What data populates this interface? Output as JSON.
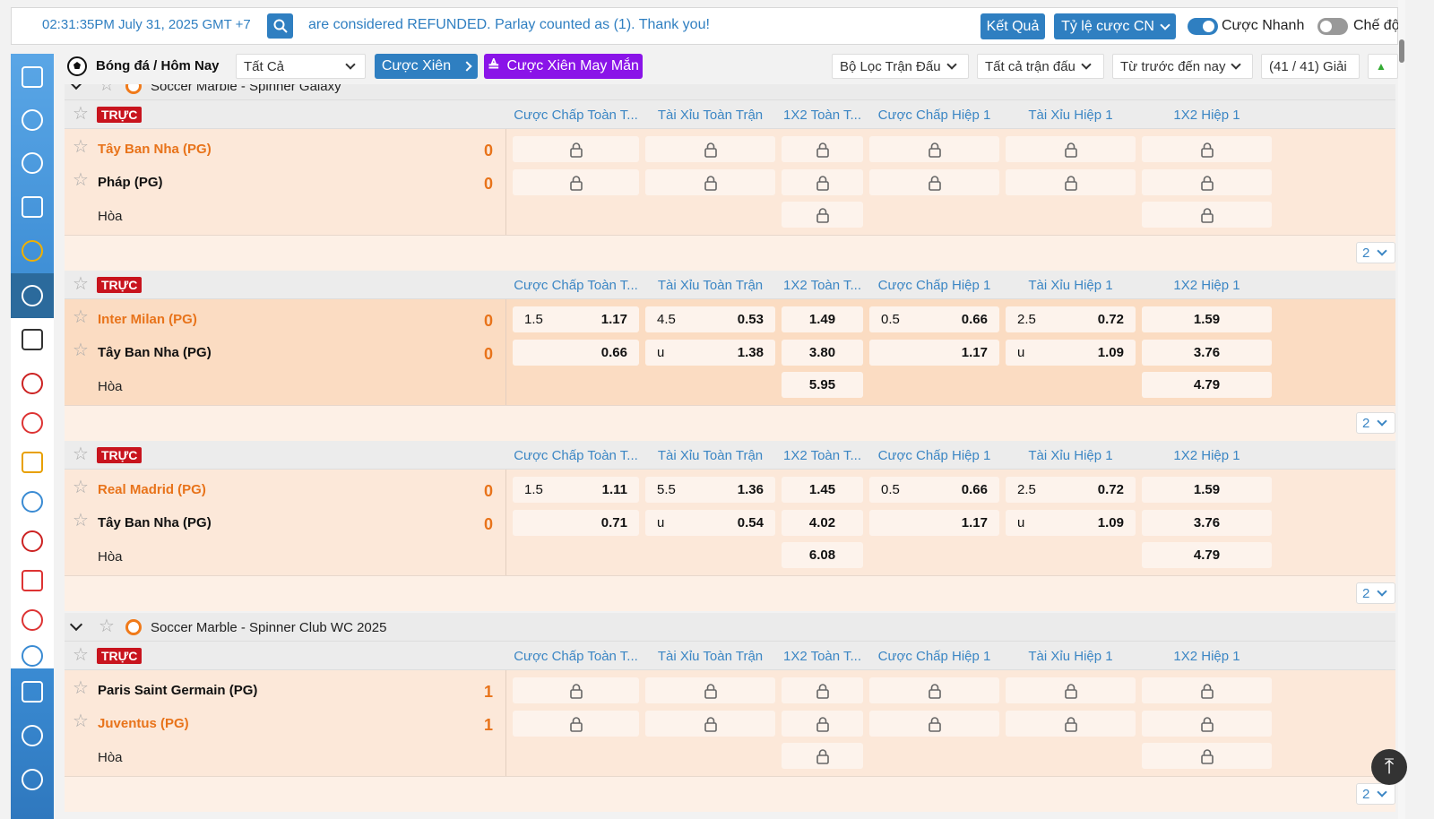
{
  "header": {
    "clock": "02:31:35PM July 31, 2025 GMT +7",
    "ticker": "are considered REFUNDED. Parlay counted as (1). Thank you!",
    "results_button": "Kết Quả",
    "odds_button": "Tỷ lệ cược CN",
    "quick_bet": "Cược Nhanh",
    "mode": "Chế độ"
  },
  "toolbar": {
    "title": "Bóng đá / Hôm Nay",
    "select": "Tất Cả",
    "parlay": "Cược Xiên",
    "lucky_parlay": "Cược Xiên May Mắn",
    "match_filter": "Bộ Lọc Trận Đấu",
    "all_matches": "Tất cả trận đấu",
    "sort": "Từ trước đến nay",
    "league_count": "(41 / 41) Giải"
  },
  "columns": [
    "Cược Chấp Toàn T...",
    "Tài Xỉu Toàn Trận",
    "1X2 Toàn T...",
    "Cược Chấp Hiệp 1",
    "Tài Xỉu Hiệp 1",
    "1X2 Hiệp 1"
  ],
  "live_badge": "TRỰC",
  "draw_label": "Hòa",
  "more_count": "2",
  "leagues": [
    {
      "name": "Soccer Marble - Spinner Galaxy",
      "matches": [
        {
          "teams": [
            {
              "name": "Tây Ban Nha (PG)",
              "score": "0"
            },
            {
              "name": "Pháp (PG)",
              "score": "0"
            }
          ],
          "favorite": 0,
          "locked": true
        },
        {
          "teams": [
            {
              "name": "Inter Milan (PG)",
              "score": "0"
            },
            {
              "name": "Tây Ban Nha (PG)",
              "score": "0"
            }
          ],
          "favorite": 0,
          "highlighted": true,
          "odds": [
            [
              {
                "line": "1.5",
                "odds": "1.17"
              },
              {
                "line": "4.5",
                "odds": "0.53"
              },
              {
                "odds": "1.49"
              },
              {
                "line": "0.5",
                "odds": "0.66"
              },
              {
                "line": "2.5",
                "odds": "0.72"
              },
              {
                "odds": "1.59"
              }
            ],
            [
              {
                "odds": "0.66"
              },
              {
                "line": "u",
                "odds": "1.38"
              },
              {
                "odds": "3.80"
              },
              {
                "odds": "1.17"
              },
              {
                "line": "u",
                "odds": "1.09"
              },
              {
                "odds": "3.76"
              }
            ],
            [
              null,
              null,
              {
                "odds": "5.95"
              },
              null,
              null,
              {
                "odds": "4.79"
              }
            ]
          ]
        },
        {
          "teams": [
            {
              "name": "Real Madrid (PG)",
              "score": "0"
            },
            {
              "name": "Tây Ban Nha (PG)",
              "score": "0"
            }
          ],
          "favorite": 0,
          "odds": [
            [
              {
                "line": "1.5",
                "odds": "1.11"
              },
              {
                "line": "5.5",
                "odds": "1.36"
              },
              {
                "odds": "1.45"
              },
              {
                "line": "0.5",
                "odds": "0.66"
              },
              {
                "line": "2.5",
                "odds": "0.72"
              },
              {
                "odds": "1.59"
              }
            ],
            [
              {
                "odds": "0.71"
              },
              {
                "line": "u",
                "odds": "0.54"
              },
              {
                "odds": "4.02"
              },
              {
                "odds": "1.17"
              },
              {
                "line": "u",
                "odds": "1.09"
              },
              {
                "odds": "3.76"
              }
            ],
            [
              null,
              null,
              {
                "odds": "6.08"
              },
              null,
              null,
              {
                "odds": "4.79"
              }
            ]
          ]
        }
      ]
    },
    {
      "name": "Soccer Marble - Spinner Club WC 2025",
      "matches": [
        {
          "teams": [
            {
              "name": "Paris Saint Germain (PG)",
              "score": "1"
            },
            {
              "name": "Juventus (PG)",
              "score": "1"
            }
          ],
          "favorite": 1,
          "locked": true
        }
      ]
    }
  ]
}
